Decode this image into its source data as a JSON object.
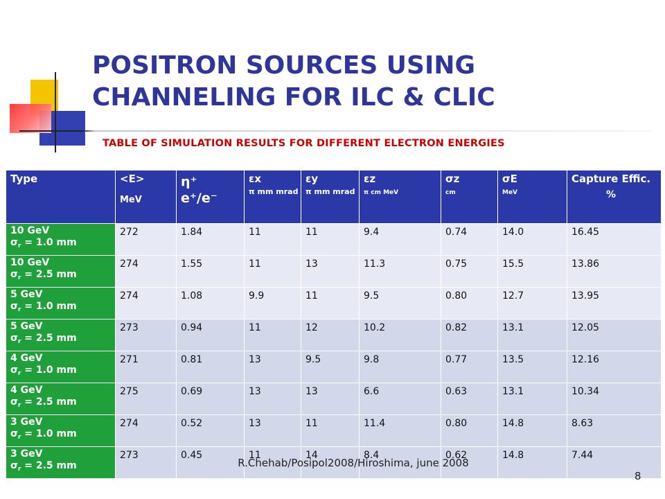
{
  "slide": {
    "title": "POSITRON SOURCES USING CHANNELING FOR ILC & CLIC",
    "subtitle": "TABLE OF SIMULATION RESULTS FOR DIFFERENT ELECTRON ENERGIES",
    "footer": "R.Chehab/Posipol2008/Hiroshima, june 2008",
    "page_number": "8"
  },
  "colors": {
    "title": "#2f3699",
    "subtitle": "#cc0000",
    "header_bg": "#2b39a8",
    "type_bg": "#1fa03a",
    "row_light": "#e7eaf4",
    "row_dark": "#d2d7ea"
  },
  "table": {
    "headers": [
      {
        "main": "Type",
        "sub": ""
      },
      {
        "main": "<E>",
        "sub": "MeV"
      },
      {
        "main": "η⁺",
        "sub": "e⁺/e⁻"
      },
      {
        "main": "εx",
        "sub": "π mm mrad"
      },
      {
        "main": "εy",
        "sub": "π mm mrad"
      },
      {
        "main": "εz",
        "sub": "π cm MeV"
      },
      {
        "main": "σz",
        "sub": "cm"
      },
      {
        "main": "σE",
        "sub": "MeV"
      },
      {
        "main": "Capture Effic.",
        "sub": "%"
      }
    ],
    "rows": [
      {
        "energy": "10 GeV",
        "sigma": "= 1.0 mm",
        "values": [
          "272",
          "1.84",
          "11",
          "11",
          "9.4",
          "0.74",
          "14.0",
          "16.45"
        ]
      },
      {
        "energy": "10 GeV",
        "sigma": "= 2.5 mm",
        "values": [
          "274",
          "1.55",
          "11",
          "13",
          "11.3",
          "0.75",
          "15.5",
          "13.86"
        ]
      },
      {
        "energy": "5 GeV",
        "sigma": "= 1.0 mm",
        "values": [
          "274",
          "1.08",
          "9.9",
          "11",
          "9.5",
          "0.80",
          "12.7",
          "13.95"
        ]
      },
      {
        "energy": "5 GeV",
        "sigma": "= 2.5 mm",
        "values": [
          "273",
          "0.94",
          "11",
          "12",
          "10.2",
          "0.82",
          "13.1",
          "12.05"
        ]
      },
      {
        "energy": "4 GeV",
        "sigma": "= 1.0 mm",
        "values": [
          "271",
          "0.81",
          "13",
          "9.5",
          "9.8",
          "0.77",
          "13.5",
          "12.16"
        ]
      },
      {
        "energy": "4 GeV",
        "sigma": "= 2.5 mm",
        "values": [
          "275",
          "0.69",
          "13",
          "13",
          "6.6",
          "0.63",
          "13.1",
          "10.34"
        ]
      },
      {
        "energy": "3 GeV",
        "sigma": "= 1.0 mm",
        "values": [
          "274",
          "0.52",
          "13",
          "11",
          "11.4",
          "0.80",
          "14.8",
          "8.63"
        ]
      },
      {
        "energy": "3 GeV",
        "sigma": "= 2.5 mm",
        "values": [
          "273",
          "0.45",
          "11",
          "14",
          "8.4",
          "0.62",
          "14.8",
          "7.44"
        ]
      }
    ]
  }
}
